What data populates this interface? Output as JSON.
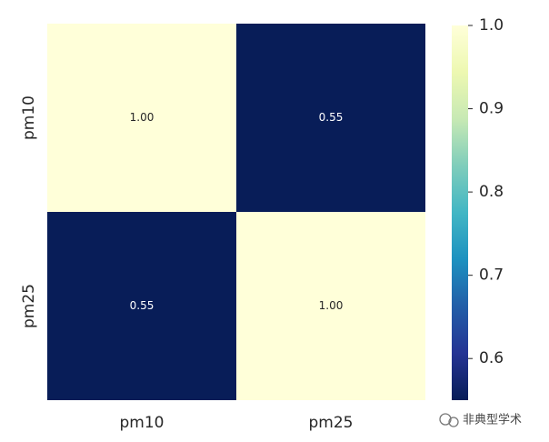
{
  "chart_data": {
    "type": "heatmap",
    "x_categories": [
      "pm10",
      "pm25"
    ],
    "y_categories": [
      "pm10",
      "pm25"
    ],
    "values": [
      [
        1.0,
        0.55
      ],
      [
        0.55,
        1.0
      ]
    ],
    "value_labels": [
      [
        "1.00",
        "0.55"
      ],
      [
        "0.55",
        "1.00"
      ]
    ],
    "colormap": [
      "#081d58",
      "#253494",
      "#225ea8",
      "#1d91c0",
      "#41b6c4",
      "#7fcdbb",
      "#c7e9b4",
      "#edf8b1",
      "#ffffd9"
    ],
    "clim": [
      0.55,
      1.0
    ],
    "cticks": [
      0.6,
      0.7,
      0.8,
      0.9,
      {
        "value": 1.0,
        "label": "1.0"
      }
    ],
    "watermark": "非典型学术"
  }
}
